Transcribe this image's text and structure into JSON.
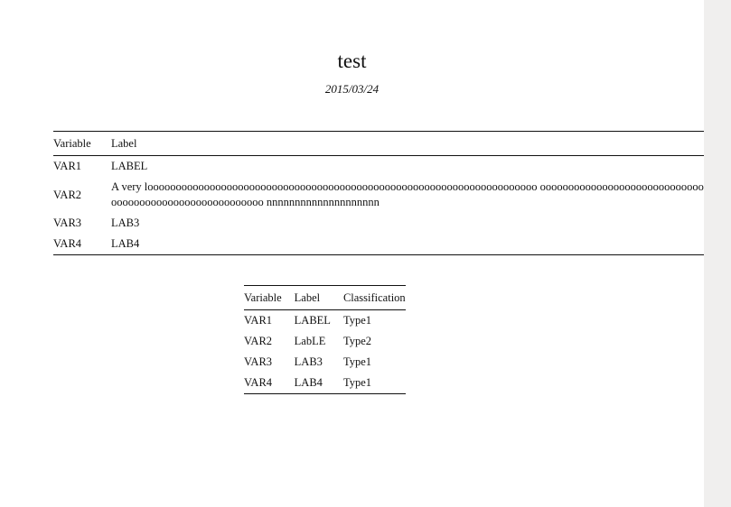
{
  "document": {
    "title": "test",
    "date": "2015/03/24"
  },
  "table1": {
    "headers": [
      "Variable",
      "Label"
    ],
    "rows": [
      [
        "VAR1",
        "LABEL"
      ],
      [
        "VAR2",
        "A very looooooooooooooooooooooooooooooooooooooooooooooooooooooooooooooooooooo oooooooooooooooooooooooooooooooooooooooooooooooooooooooo nnnnnnnnnnnnnnnnnnnn"
      ],
      [
        "VAR3",
        "LAB3"
      ],
      [
        "VAR4",
        "LAB4"
      ]
    ]
  },
  "table2": {
    "headers": [
      "Variable",
      "Label",
      "Classification"
    ],
    "rows": [
      [
        "VAR1",
        "LABEL",
        "Type1"
      ],
      [
        "VAR2",
        "LabLE",
        "Type2"
      ],
      [
        "VAR3",
        "LAB3",
        "Type1"
      ],
      [
        "VAR4",
        "LAB4",
        "Type1"
      ]
    ]
  }
}
